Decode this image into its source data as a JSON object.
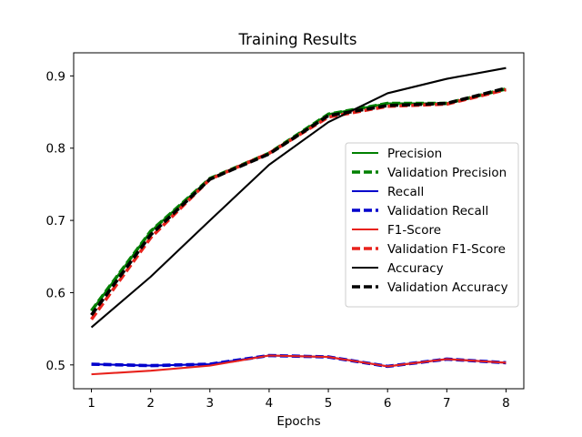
{
  "chart_data": {
    "type": "line",
    "title": "Training Results",
    "xlabel": "Epochs",
    "ylabel": "",
    "x": [
      1,
      2,
      3,
      4,
      5,
      6,
      7,
      8
    ],
    "xlim": [
      0.7,
      8.3
    ],
    "ylim": [
      0.467,
      0.932
    ],
    "xticks": [
      1,
      2,
      3,
      4,
      5,
      6,
      7,
      8
    ],
    "yticks": [
      0.5,
      0.6,
      0.7,
      0.8,
      0.9
    ],
    "grid": false,
    "legend_position": "center-right",
    "series": [
      {
        "name": "Precision",
        "color": "#008000",
        "style": "solid",
        "values": [
          0.575,
          0.685,
          0.758,
          0.793,
          0.847,
          0.862,
          0.862,
          0.882
        ]
      },
      {
        "name": "Validation Precision",
        "color": "#008000",
        "style": "dashed",
        "values": [
          0.575,
          0.685,
          0.758,
          0.793,
          0.847,
          0.862,
          0.862,
          0.882
        ]
      },
      {
        "name": "Recall",
        "color": "#0000cc",
        "style": "solid",
        "values": [
          0.501,
          0.499,
          0.501,
          0.513,
          0.511,
          0.498,
          0.508,
          0.503
        ]
      },
      {
        "name": "Validation Recall",
        "color": "#0000cc",
        "style": "dashed",
        "values": [
          0.501,
          0.499,
          0.501,
          0.513,
          0.511,
          0.498,
          0.508,
          0.503
        ]
      },
      {
        "name": "F1-Score",
        "color": "#e8221c",
        "style": "solid",
        "values": [
          0.487,
          0.492,
          0.499,
          0.513,
          0.511,
          0.498,
          0.508,
          0.503
        ]
      },
      {
        "name": "Validation F1-Score",
        "color": "#e8221c",
        "style": "dashed",
        "values": [
          0.563,
          0.676,
          0.757,
          0.793,
          0.843,
          0.858,
          0.861,
          0.881
        ]
      },
      {
        "name": "Accuracy",
        "color": "#000000",
        "style": "solid",
        "values": [
          0.552,
          0.622,
          0.7,
          0.777,
          0.836,
          0.876,
          0.896,
          0.911
        ]
      },
      {
        "name": "Validation Accuracy",
        "color": "#000000",
        "style": "dashed",
        "values": [
          0.569,
          0.68,
          0.757,
          0.792,
          0.845,
          0.859,
          0.862,
          0.883
        ]
      }
    ]
  }
}
